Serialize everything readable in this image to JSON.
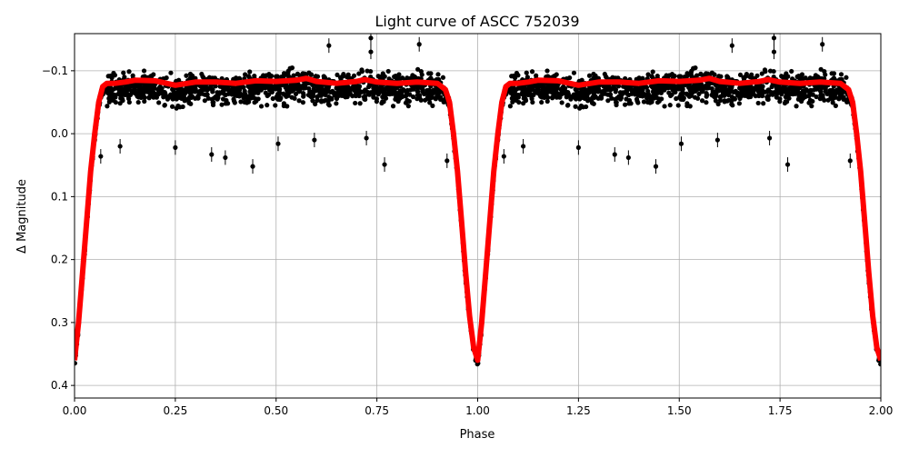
{
  "chart_data": {
    "type": "scatter",
    "title": "Light curve of ASCC 752039",
    "xlabel": "Phase",
    "ylabel": "Δ Magnitude",
    "xlim": [
      0,
      2
    ],
    "ylim": [
      0.42,
      -0.159
    ],
    "y_inverted": true,
    "grid": true,
    "xticks": [
      "0.00",
      "0.25",
      "0.50",
      "0.75",
      "1.00",
      "1.25",
      "1.50",
      "1.75",
      "2.00"
    ],
    "xtick_values": [
      0,
      0.25,
      0.5,
      0.75,
      1,
      1.25,
      1.5,
      1.75,
      2
    ],
    "yticks": [
      "−0.1",
      "0.0",
      "0.1",
      "0.2",
      "0.3",
      "0.4"
    ],
    "ytick_values": [
      -0.1,
      0,
      0.1,
      0.2,
      0.3,
      0.4
    ],
    "period_repeat": 1,
    "colors": {
      "points": "#000000",
      "model": "#ff0000",
      "grid": "#b0b0b0"
    },
    "model_curve": {
      "phase": [
        0,
        0.01,
        0.02,
        0.03,
        0.04,
        0.05,
        0.06,
        0.07,
        0.08,
        0.1,
        0.125,
        0.15,
        0.2,
        0.25,
        0.3,
        0.35,
        0.4,
        0.45,
        0.5,
        0.55,
        0.575,
        0.6,
        0.65,
        0.7,
        0.72,
        0.75,
        0.8,
        0.85,
        0.9,
        0.92,
        0.93,
        0.94,
        0.95,
        0.96,
        0.97,
        0.98,
        0.99,
        1.0
      ],
      "magnitude": [
        0.36,
        0.3,
        0.22,
        0.14,
        0.06,
        0.0,
        -0.05,
        -0.075,
        -0.08,
        -0.08,
        -0.082,
        -0.085,
        -0.084,
        -0.077,
        -0.082,
        -0.082,
        -0.08,
        -0.084,
        -0.083,
        -0.085,
        -0.088,
        -0.083,
        -0.08,
        -0.083,
        -0.086,
        -0.082,
        -0.08,
        -0.082,
        -0.08,
        -0.07,
        -0.05,
        0.0,
        0.06,
        0.14,
        0.22,
        0.29,
        0.34,
        0.36
      ]
    },
    "points_scatter_around_model": 0.035,
    "outliers": {
      "phase": [
        0.631,
        0.735,
        0.735,
        0.855,
        0.442,
        0.769,
        0.34,
        0.374,
        0.25,
        0.505,
        0.595,
        0.724,
        0.065,
        0.113,
        0.924
      ],
      "magnitude": [
        -0.14,
        -0.152,
        -0.13,
        -0.142,
        0.052,
        0.049,
        0.033,
        0.038,
        0.022,
        0.016,
        0.01,
        0.007,
        0.036,
        0.02,
        0.043
      ]
    }
  }
}
